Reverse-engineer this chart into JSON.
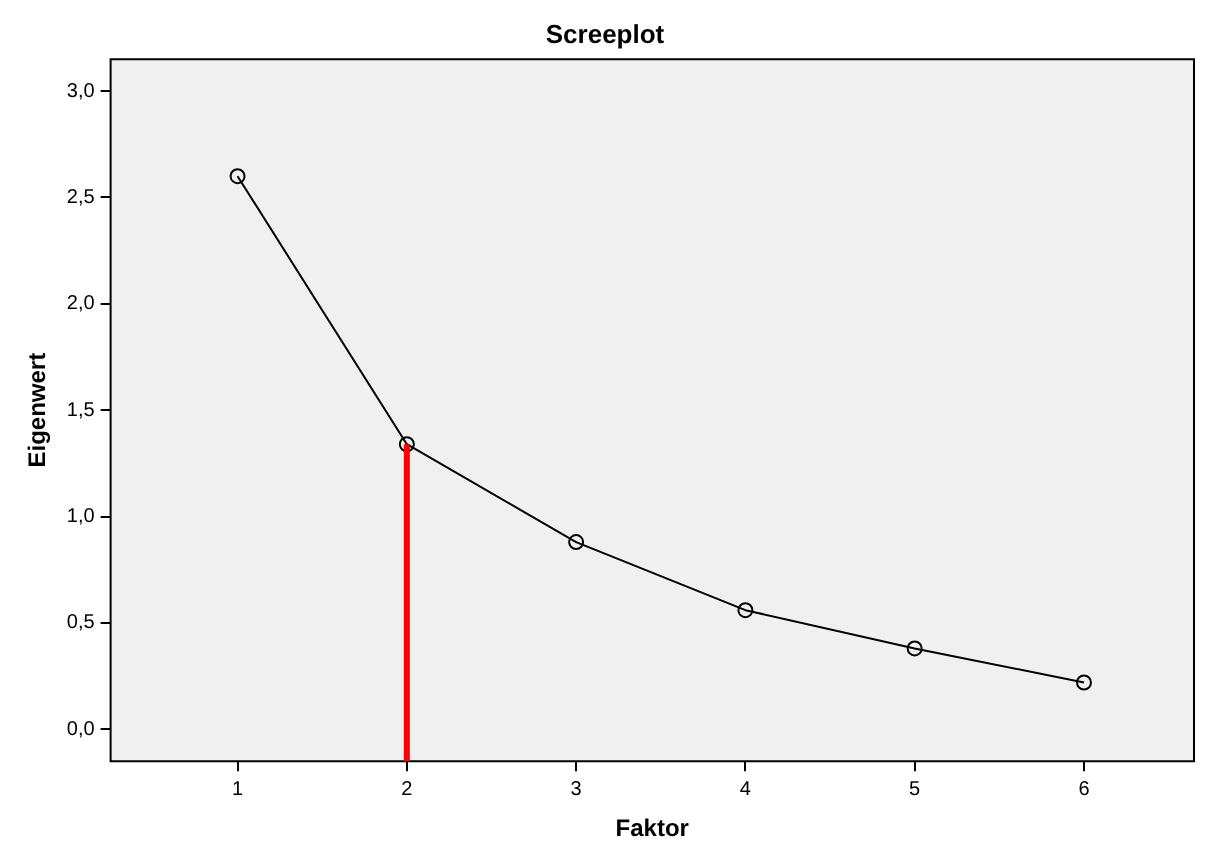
{
  "chart_data": {
    "type": "line",
    "title": "Screeplot",
    "xlabel": "Faktor",
    "ylabel": "Eigenwert",
    "x": [
      1,
      2,
      3,
      4,
      5,
      6
    ],
    "series": [
      {
        "color": "#000000",
        "values": [
          2.6,
          1.34,
          0.88,
          0.56,
          0.38,
          0.22
        ]
      }
    ],
    "xlim": [
      0.25,
      6.65
    ],
    "xticks": [
      1,
      2,
      3,
      4,
      5,
      6
    ],
    "ylim": [
      -0.15,
      3.15
    ],
    "yticks": [
      {
        "value": 0,
        "label": "0,0"
      },
      {
        "value": 0.5,
        "label": "0,5"
      },
      {
        "value": 1,
        "label": "1,0"
      },
      {
        "value": 1.5,
        "label": "1,5"
      },
      {
        "value": 2,
        "label": "2,0"
      },
      {
        "value": 2.5,
        "label": "2,5"
      },
      {
        "value": 3,
        "label": "3,0"
      }
    ],
    "ref_lines": [
      {
        "axis": "x",
        "value": 2,
        "color": "#ff0000"
      }
    ],
    "grid": false,
    "legend": false,
    "marker": "circle",
    "line_style": "solid"
  }
}
